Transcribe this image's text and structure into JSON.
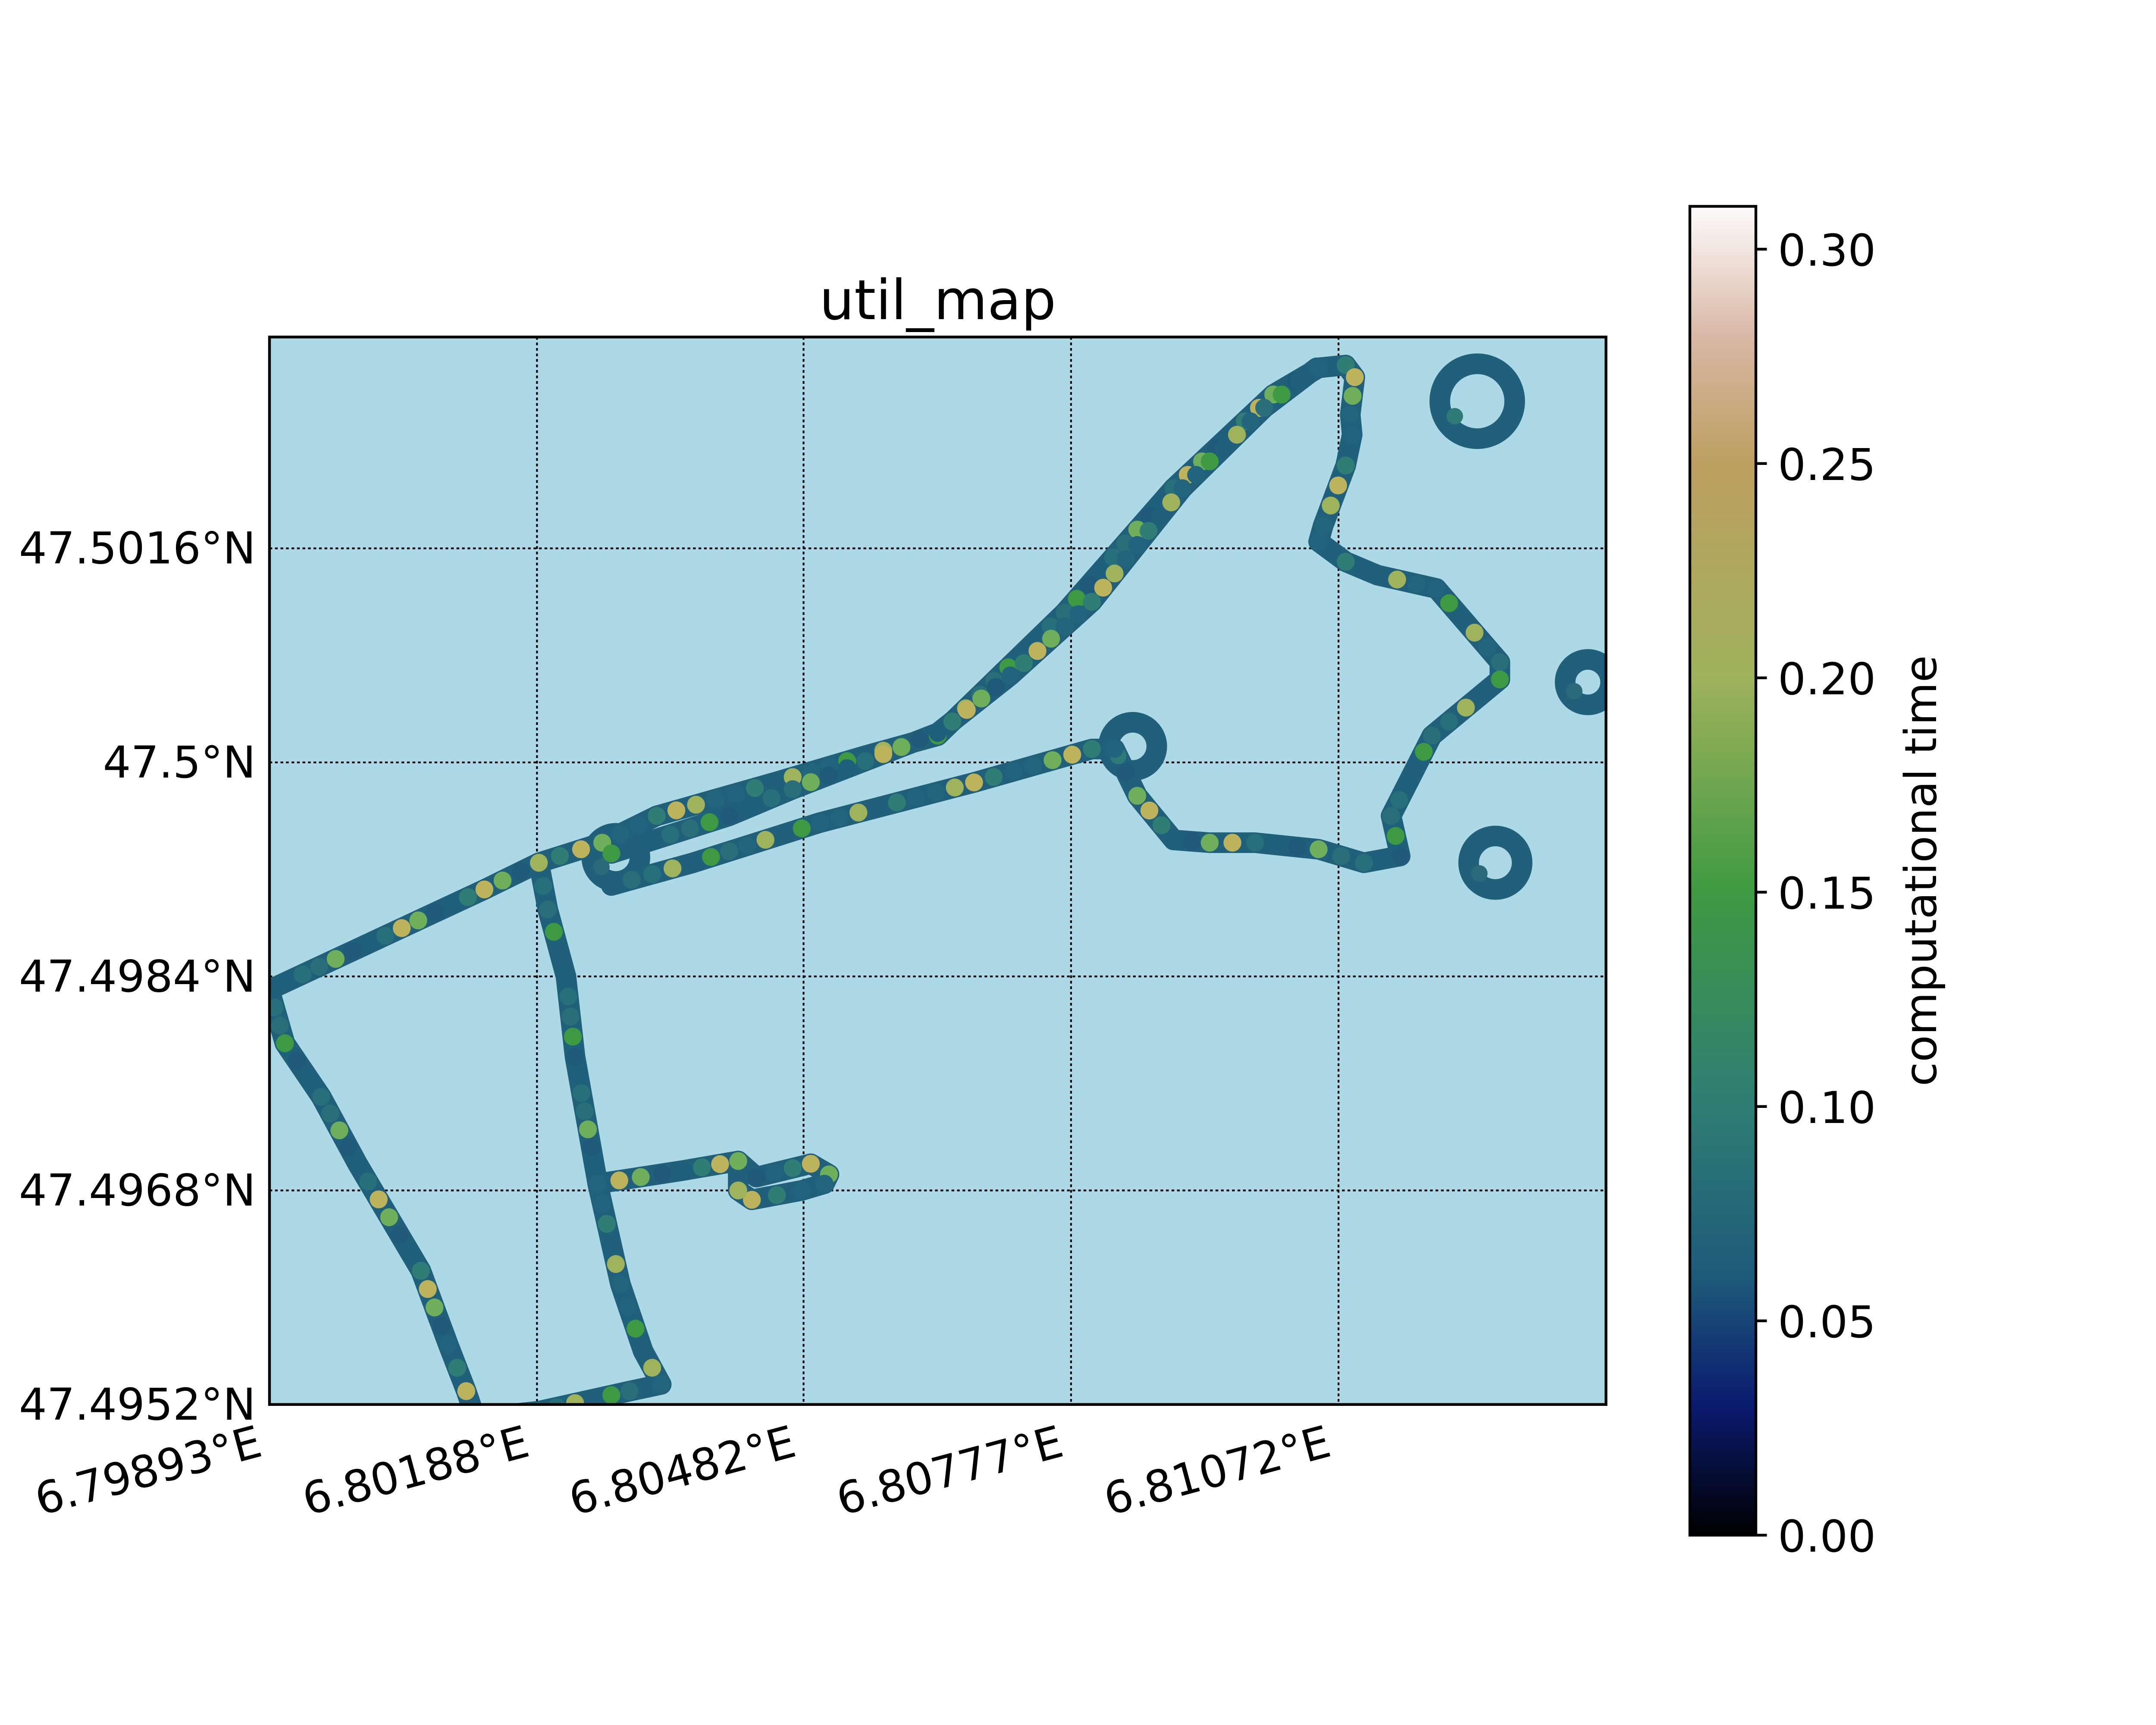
{
  "chart_data": {
    "type": "scatter",
    "title": "util_map",
    "xlabel": "",
    "ylabel": "",
    "background": "#add8e6",
    "grid": true,
    "xlim": [
      6.79893,
      6.81367
    ],
    "ylim": [
      47.4952,
      47.50318
    ],
    "x_ticks": [
      6.79893,
      6.80188,
      6.80482,
      6.80777,
      6.81072
    ],
    "x_tick_labels": [
      "6.79893°E",
      "6.80188°E",
      "6.80482°E",
      "6.80777°E",
      "6.81072°E"
    ],
    "y_ticks": [
      47.4952,
      47.4968,
      47.4984,
      47.5,
      47.5016
    ],
    "y_tick_labels": [
      "47.4952°N",
      "47.4968°N",
      "47.4984°N",
      "47.5°N",
      "47.5016°N"
    ],
    "colorbar": {
      "label": "computational time",
      "range": [
        0.0,
        0.31
      ],
      "ticks": [
        0.0,
        0.05,
        0.1,
        0.15,
        0.2,
        0.25,
        0.3
      ],
      "tick_labels": [
        "0.00",
        "0.05",
        "0.10",
        "0.15",
        "0.20",
        "0.25",
        "0.30"
      ],
      "colormap": "gist_earth",
      "stops": [
        {
          "v": 0.0,
          "color": "#000000"
        },
        {
          "v": 0.03,
          "color": "#0a1a6e"
        },
        {
          "v": 0.06,
          "color": "#1e5a7a"
        },
        {
          "v": 0.1,
          "color": "#2f7d74"
        },
        {
          "v": 0.15,
          "color": "#3e9a42"
        },
        {
          "v": 0.2,
          "color": "#9fb25c"
        },
        {
          "v": 0.25,
          "color": "#bd9f60"
        },
        {
          "v": 0.28,
          "color": "#d9b8a6"
        },
        {
          "v": 0.31,
          "color": "#fdfbfb"
        }
      ]
    },
    "track_segments": [
      [
        [
          6.79893,
          47.4983
        ],
        [
          6.8013,
          47.49905
        ],
        [
          6.8019,
          47.49925
        ],
        [
          6.8026,
          47.4994
        ],
        [
          6.8032,
          47.4996
        ],
        [
          6.8045,
          47.49985
        ],
        [
          6.8055,
          47.50005
        ],
        [
          6.8063,
          47.5002
        ],
        [
          6.8077,
          47.50112
        ],
        [
          6.8089,
          47.50205
        ],
        [
          6.81,
          47.50275
        ],
        [
          6.8105,
          47.50295
        ],
        [
          6.8108,
          47.50297
        ],
        [
          6.8109,
          47.50288
        ],
        [
          6.81085,
          47.5026
        ],
        [
          6.81087,
          47.50245
        ],
        [
          6.8108,
          47.50222
        ],
        [
          6.81055,
          47.50177
        ],
        [
          6.8105,
          47.50165
        ],
        [
          6.8108,
          47.5015
        ],
        [
          6.81115,
          47.5014
        ],
        [
          6.8118,
          47.5013
        ],
        [
          6.8125,
          47.50075
        ],
        [
          6.8125,
          47.50062
        ],
        [
          6.81175,
          47.5002
        ],
        [
          6.8113,
          47.4996
        ],
        [
          6.8114,
          47.4993
        ],
        [
          6.811,
          47.49925
        ],
        [
          6.8105,
          47.49935
        ],
        [
          6.8098,
          47.4994
        ],
        [
          6.8093,
          47.4994
        ],
        [
          6.8089,
          47.49942
        ],
        [
          6.8085,
          47.49975
        ],
        [
          6.80825,
          47.5001
        ],
        [
          6.808,
          47.5001
        ],
        [
          6.8067,
          47.49985
        ],
        [
          6.805,
          47.49955
        ],
        [
          6.8036,
          47.49925
        ],
        [
          6.8027,
          47.49908
        ]
      ],
      [
        [
          6.8027,
          47.49932
        ],
        [
          6.804,
          47.4996
        ],
        [
          6.8047,
          47.4998
        ],
        [
          6.8063,
          47.50022
        ],
        [
          6.8071,
          47.50065
        ],
        [
          6.808,
          47.5012
        ],
        [
          6.809,
          47.50205
        ],
        [
          6.8099,
          47.50265
        ],
        [
          6.81048,
          47.50295
        ]
      ],
      [
        [
          6.8019,
          47.49925
        ],
        [
          6.802,
          47.4989
        ],
        [
          6.8022,
          47.4984
        ],
        [
          6.8023,
          47.4978
        ],
        [
          6.80255,
          47.49685
        ],
        [
          6.8035,
          47.49695
        ],
        [
          6.8041,
          47.49702
        ],
        [
          6.8043,
          47.4969
        ],
        [
          6.8049,
          47.497
        ],
        [
          6.8051,
          47.49692
        ],
        [
          6.80505,
          47.49685
        ],
        [
          6.8048,
          47.4968
        ],
        [
          6.80425,
          47.49673
        ],
        [
          6.8041,
          47.4968
        ],
        [
          6.8041,
          47.49695
        ]
      ],
      [
        [
          6.80255,
          47.49685
        ],
        [
          6.8027,
          47.4964
        ],
        [
          6.8028,
          47.4961
        ],
        [
          6.80305,
          47.4956
        ],
        [
          6.80325,
          47.49535
        ],
        [
          6.8029,
          47.4953
        ],
        [
          6.8019,
          47.49515
        ],
        [
          6.8012,
          47.4951
        ]
      ],
      [
        [
          6.79893,
          47.4983
        ],
        [
          6.7991,
          47.4979
        ],
        [
          6.7995,
          47.4975
        ],
        [
          6.7999,
          47.497
        ],
        [
          6.8006,
          47.4962
        ],
        [
          6.8009,
          47.49565
        ],
        [
          6.8011,
          47.4953
        ],
        [
          6.8012,
          47.4951
        ]
      ]
    ],
    "loops": [
      {
        "x": 6.81225,
        "y": 47.5027,
        "r": 0.00028,
        "color": "#2e7a76"
      },
      {
        "x": 6.80275,
        "y": 47.49929,
        "r": 0.00018,
        "color": "#2a6a7a"
      },
      {
        "x": 6.80845,
        "y": 47.50012,
        "r": 0.00018,
        "color": "#2e7a76"
      },
      {
        "x": 6.81245,
        "y": 47.49925,
        "r": 0.0002,
        "color": "#2a6a7a"
      },
      {
        "x": 6.81347,
        "y": 47.5006,
        "r": 0.00017,
        "color": "#2a6a7a"
      }
    ],
    "marker_cycle": [
      "#1f5a7a",
      "#22657c",
      "#276f7a",
      "#2f7d74",
      "#3e9a42",
      "#6fae5a",
      "#9fb25c",
      "#1e5f7c",
      "#22637d",
      "#2a6e7a",
      "#bdb35c",
      "#21607b"
    ]
  }
}
